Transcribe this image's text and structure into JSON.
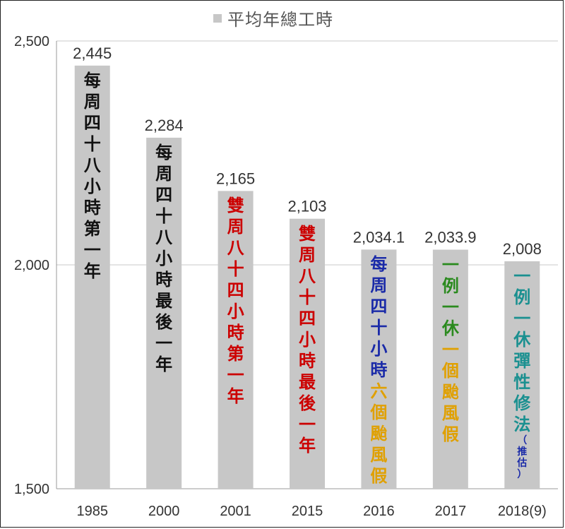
{
  "legend": {
    "label": "平均年總工時"
  },
  "chart_data": {
    "type": "bar",
    "series": [
      {
        "name": "平均年總工時",
        "values": [
          2445,
          2284,
          2165,
          2103,
          2034.1,
          2033.9,
          2008
        ]
      }
    ],
    "categories": [
      "1985",
      "2000",
      "2001",
      "2015",
      "2016",
      "2017",
      "2018(9)"
    ],
    "value_labels": [
      "2,445",
      "2,284",
      "2,165",
      "2,103",
      "2,034.1",
      "2,033.9",
      "2,008"
    ],
    "ylim": [
      1500,
      2500
    ],
    "yticks": [
      {
        "v": 1500,
        "label": "1,500"
      },
      {
        "v": 2000,
        "label": "2,000"
      },
      {
        "v": 2500,
        "label": "2,500"
      }
    ],
    "grid": true,
    "bar_color": "#c7c7c7"
  },
  "annotations": [
    {
      "lines": [
        {
          "text": "每周四十八小時第一年",
          "color": "#111111"
        }
      ]
    },
    {
      "lines": [
        {
          "text": "每周四十八小時最後一年",
          "color": "#111111"
        }
      ]
    },
    {
      "lines": [
        {
          "text": "雙周八十四小時第一年",
          "color": "#cc0000"
        }
      ]
    },
    {
      "lines": [
        {
          "text": "雙周八十四小時最後一年",
          "color": "#cc0000"
        }
      ]
    },
    {
      "lines": [
        {
          "text": "每周四十小時",
          "color": "#1a2aa8"
        },
        {
          "text": "六個颱風假",
          "color": "#e0a000"
        }
      ]
    },
    {
      "lines": [
        {
          "text": "一例一休",
          "color": "#2a8a1e"
        },
        {
          "text": "一個颱風假",
          "color": "#e0a000"
        }
      ]
    },
    {
      "lines": [
        {
          "text": "一例一休彈性修法",
          "color": "#1a9090"
        },
        {
          "text": "（推估）",
          "color": "#1a2aa8",
          "small": true
        }
      ]
    }
  ]
}
